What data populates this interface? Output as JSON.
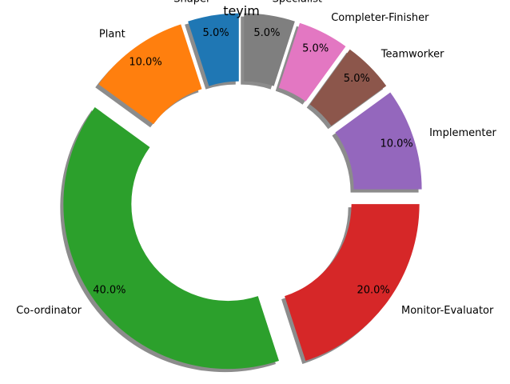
{
  "chart_data": {
    "type": "pie",
    "style": "donut",
    "title": "teyim",
    "shadow": true,
    "exploded": true,
    "slices": [
      {
        "label": "Shaper",
        "value": 5.0,
        "pct_label": "5.0%",
        "color": "#1f77b4"
      },
      {
        "label": "Plant",
        "value": 10.0,
        "pct_label": "10.0%",
        "color": "#ff7f0e"
      },
      {
        "label": "Co-ordinator",
        "value": 40.0,
        "pct_label": "40.0%",
        "color": "#2ca02c"
      },
      {
        "label": "Monitor-Evaluator",
        "value": 20.0,
        "pct_label": "20.0%",
        "color": "#d62728"
      },
      {
        "label": "Implementer",
        "value": 10.0,
        "pct_label": "10.0%",
        "color": "#9467bd"
      },
      {
        "label": "Teamworker",
        "value": 5.0,
        "pct_label": "5.0%",
        "color": "#8c564b"
      },
      {
        "label": "Completer-Finisher",
        "value": 5.0,
        "pct_label": "5.0%",
        "color": "#e377c2"
      },
      {
        "label": "Specialist",
        "value": 5.0,
        "pct_label": "5.0%",
        "color": "#7f7f7f"
      }
    ]
  }
}
